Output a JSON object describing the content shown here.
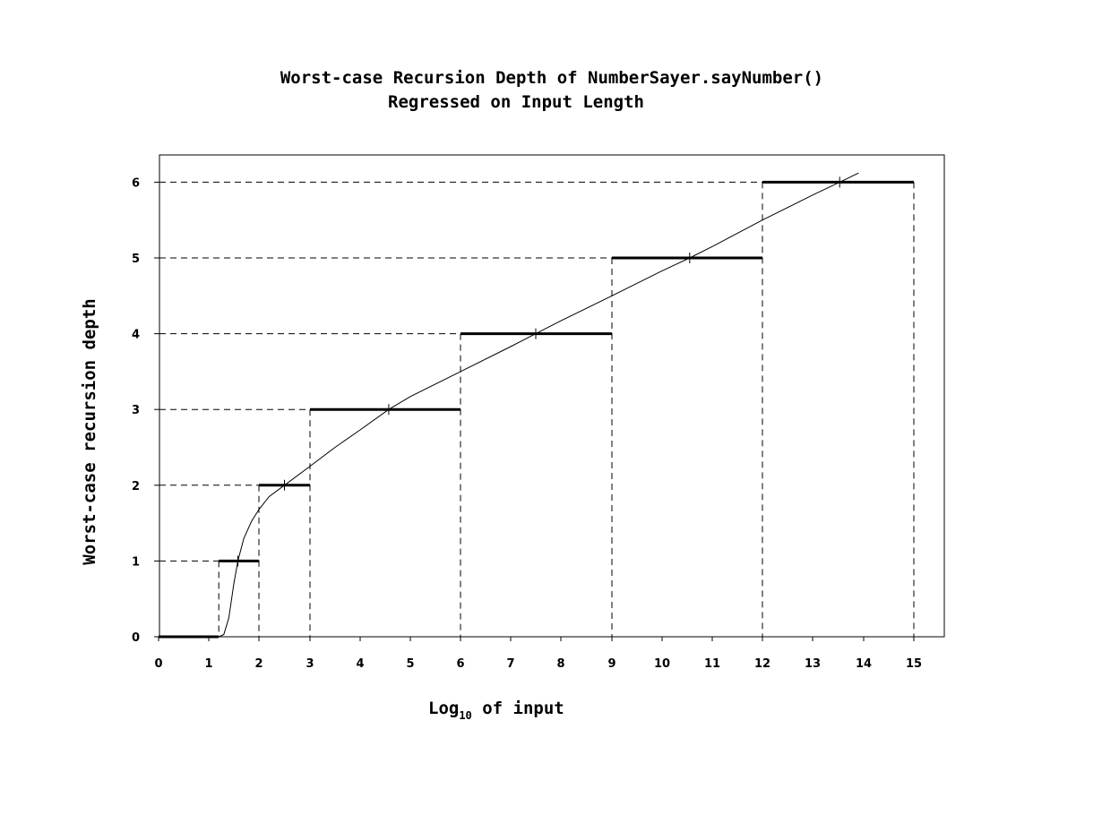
{
  "chart_data": {
    "type": "line",
    "title_line1": "Worst-case Recursion Depth of NumberSayer.sayNumber()",
    "title_line2": "Regressed on Input Length",
    "xlabel_main": "Log",
    "xlabel_sub": "10",
    "xlabel_rest": " of input",
    "ylabel": "Worst-case recursion depth",
    "x_ticks": [
      "0",
      "1",
      "2",
      "3",
      "4",
      "5",
      "6",
      "7",
      "8",
      "9",
      "10",
      "11",
      "12",
      "13",
      "14",
      "15"
    ],
    "y_ticks": [
      "0",
      "1",
      "2",
      "3",
      "4",
      "5",
      "6"
    ],
    "xlim": [
      0,
      15.5
    ],
    "ylim": [
      0,
      6.35
    ],
    "grid": false,
    "series": [
      {
        "kind": "step",
        "segments": [
          {
            "x0": 0,
            "x1": 1.2,
            "y": 0
          },
          {
            "x0": 1.2,
            "x1": 2,
            "y": 1
          },
          {
            "x0": 2,
            "x1": 3,
            "y": 2
          },
          {
            "x0": 3,
            "x1": 6,
            "y": 3
          },
          {
            "x0": 6,
            "x1": 9,
            "y": 4
          },
          {
            "x0": 9,
            "x1": 12,
            "y": 5
          },
          {
            "x0": 12,
            "x1": 15,
            "y": 6
          }
        ]
      },
      {
        "kind": "regression",
        "points": [
          [
            1.2,
            0.0
          ],
          [
            1.3,
            0.03
          ],
          [
            1.4,
            0.25
          ],
          [
            1.5,
            0.7
          ],
          [
            1.58,
            1.0
          ],
          [
            1.7,
            1.3
          ],
          [
            1.85,
            1.52
          ],
          [
            2.0,
            1.68
          ],
          [
            2.2,
            1.85
          ],
          [
            2.5,
            2.0
          ],
          [
            3.0,
            2.25
          ],
          [
            3.5,
            2.5
          ],
          [
            4.0,
            2.73
          ],
          [
            4.57,
            3.0
          ],
          [
            5.0,
            3.17
          ],
          [
            6.0,
            3.5
          ],
          [
            7.0,
            3.83
          ],
          [
            7.5,
            4.0
          ],
          [
            8.0,
            4.17
          ],
          [
            9.0,
            4.5
          ],
          [
            10.0,
            4.83
          ],
          [
            10.55,
            5.0
          ],
          [
            11.0,
            5.15
          ],
          [
            12.0,
            5.5
          ],
          [
            13.0,
            5.83
          ],
          [
            13.53,
            6.0
          ],
          [
            13.9,
            6.12
          ]
        ],
        "markers": [
          {
            "x": 1.58,
            "y": 1.0
          },
          {
            "x": 2.5,
            "y": 2.0
          },
          {
            "x": 4.57,
            "y": 3.0
          },
          {
            "x": 7.5,
            "y": 4.0
          },
          {
            "x": 10.55,
            "y": 5.0
          },
          {
            "x": 13.53,
            "y": 6.0
          }
        ]
      }
    ]
  }
}
